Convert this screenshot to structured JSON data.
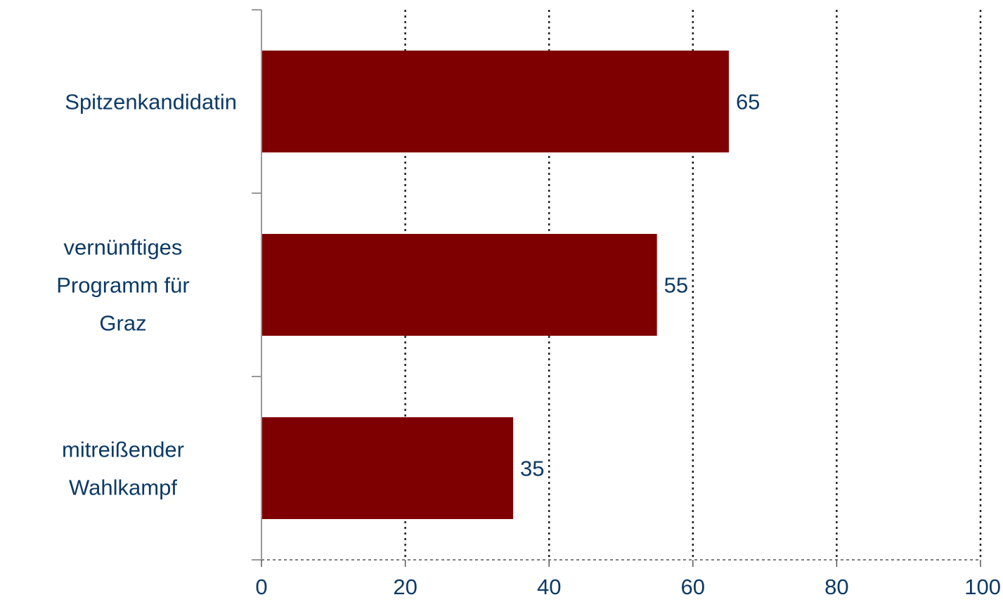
{
  "chart_data": {
    "type": "bar",
    "orientation": "horizontal",
    "categories": [
      [
        "Spitzenkandidatin"
      ],
      [
        "vernünftiges",
        "Programm für",
        "Graz"
      ],
      [
        "mitreißender",
        "Wahlkampf"
      ]
    ],
    "values": [
      65,
      55,
      35
    ],
    "data_labels": [
      "65",
      "55",
      "35"
    ],
    "xlim": [
      0,
      100
    ],
    "xticks": [
      0,
      20,
      40,
      60,
      80,
      100
    ],
    "xtick_labels": [
      "0",
      "20",
      "40",
      "60",
      "80",
      "100"
    ],
    "title": "",
    "xlabel": "",
    "ylabel": "",
    "grid": "vertical dotted",
    "legend": "none",
    "colors": {
      "bar": "#7f0000",
      "text": "#0d3a66",
      "axis": "#999999",
      "grid": "#222222"
    }
  }
}
